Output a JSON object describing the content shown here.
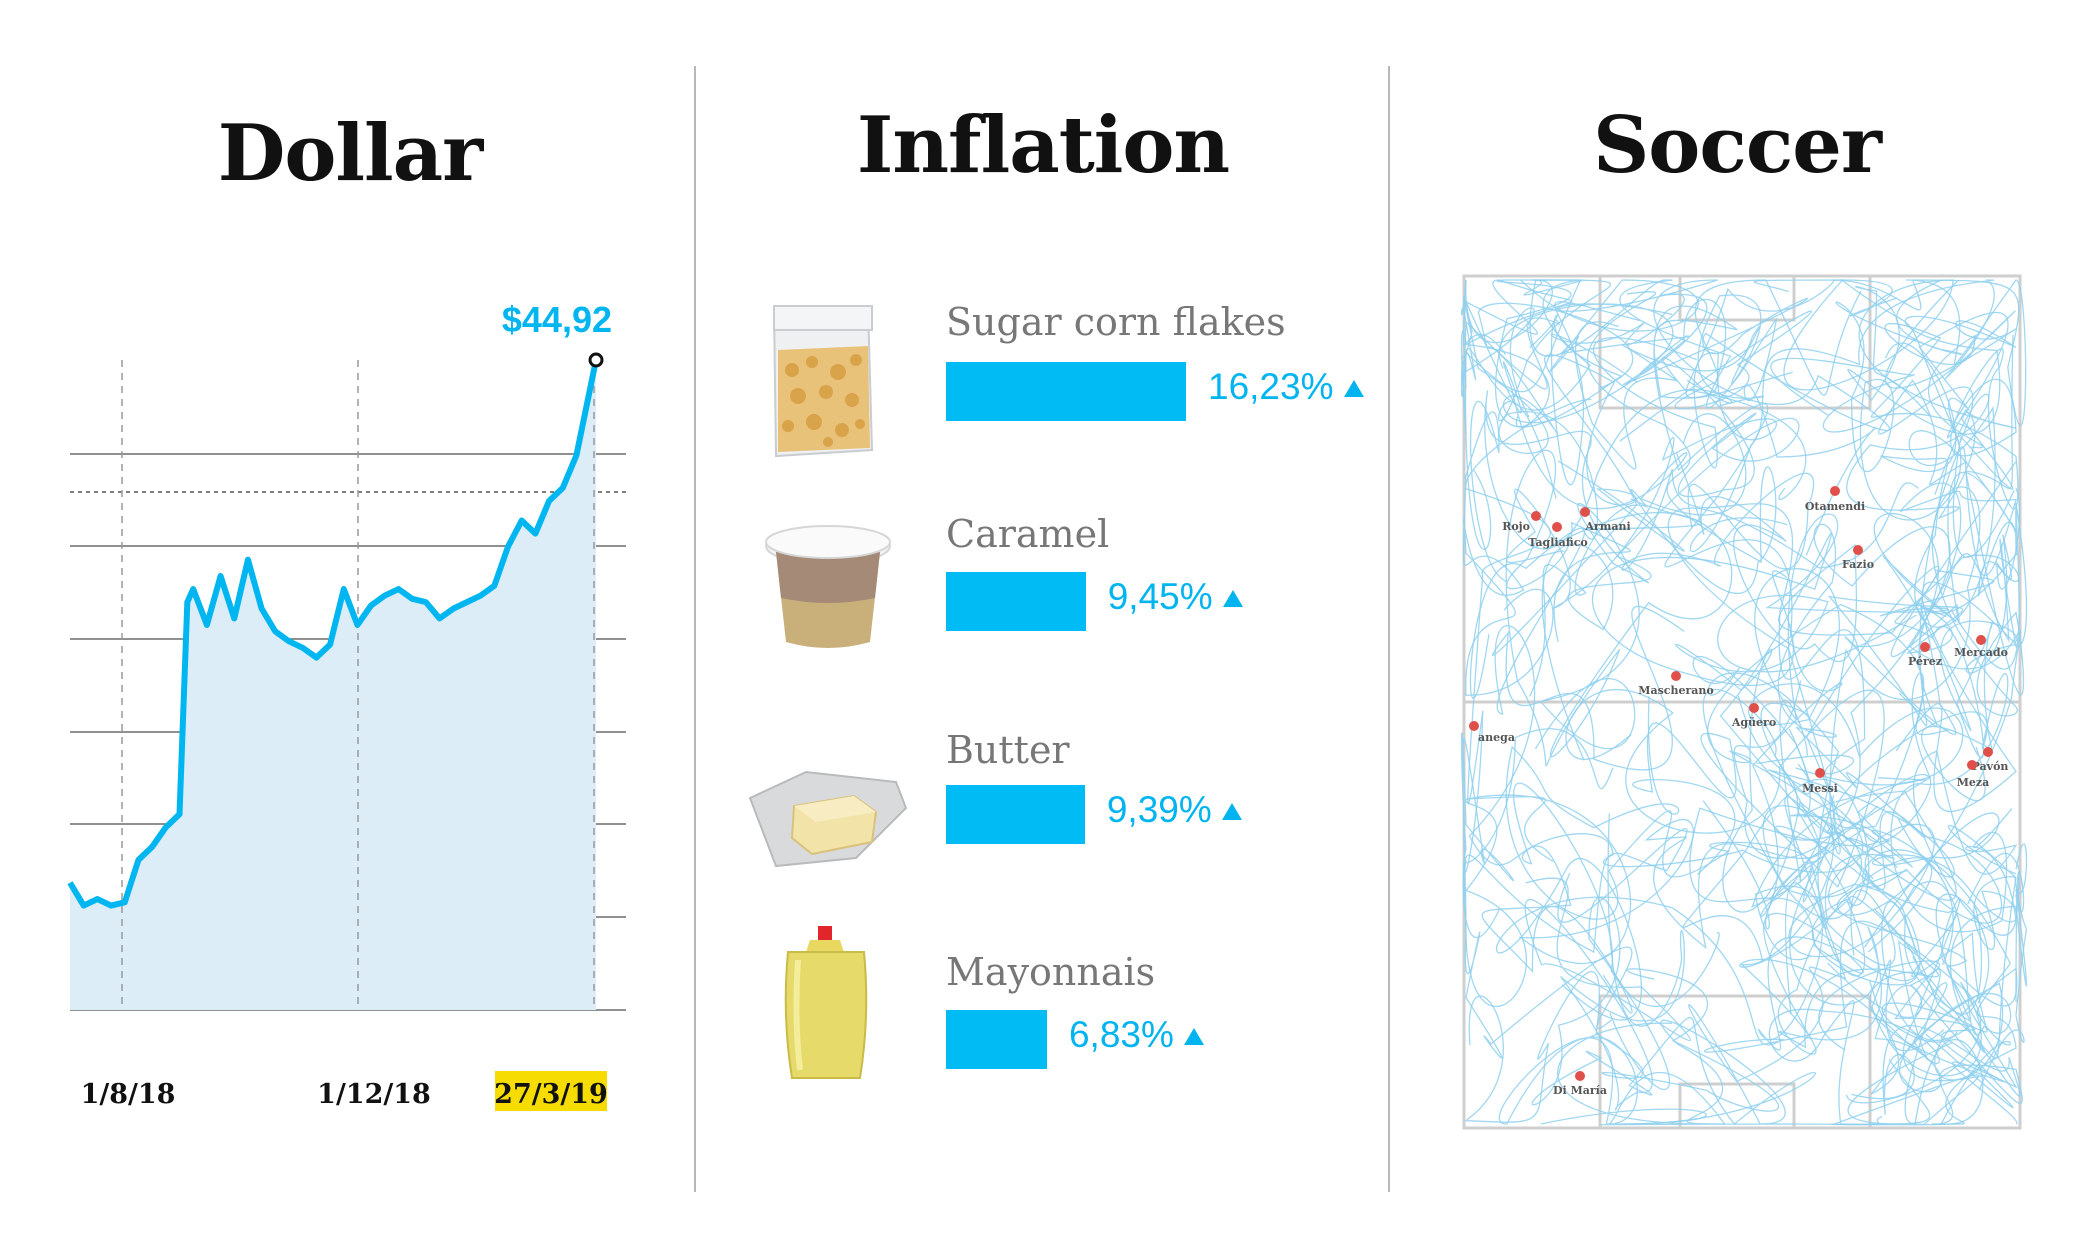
{
  "panels": {
    "dollar": {
      "title": "Dollar"
    },
    "inflation": {
      "title": "Inflation"
    },
    "soccer": {
      "title": "Soccer"
    }
  },
  "chart_data": [
    {
      "type": "area",
      "title": "Dollar",
      "x_tick_labels": [
        "1/8/18",
        "1/12/18",
        "27/3/19"
      ],
      "highlighted_tick": "27/3/19",
      "end_label": "$44,92",
      "x": [
        "2018-07-01",
        "2018-07-08",
        "2018-07-15",
        "2018-07-22",
        "2018-07-29",
        "2018-08-05",
        "2018-08-12",
        "2018-08-19",
        "2018-08-26",
        "2018-08-30",
        "2018-09-02",
        "2018-09-09",
        "2018-09-16",
        "2018-09-23",
        "2018-09-30",
        "2018-10-07",
        "2018-10-14",
        "2018-10-21",
        "2018-10-28",
        "2018-11-04",
        "2018-11-11",
        "2018-11-18",
        "2018-11-25",
        "2018-12-02",
        "2018-12-09",
        "2018-12-16",
        "2018-12-23",
        "2018-12-30",
        "2019-01-06",
        "2019-01-13",
        "2019-01-20",
        "2019-01-27",
        "2019-02-03",
        "2019-02-10",
        "2019-02-17",
        "2019-02-24",
        "2019-03-03",
        "2019-03-10",
        "2019-03-17",
        "2019-03-27"
      ],
      "values": [
        28.9,
        28.2,
        28.4,
        28.2,
        28.3,
        29.6,
        30.0,
        30.6,
        31.0,
        37.5,
        37.9,
        36.8,
        38.3,
        37.0,
        38.8,
        37.3,
        36.6,
        36.3,
        36.1,
        35.8,
        36.2,
        37.9,
        36.8,
        37.4,
        37.7,
        37.9,
        37.6,
        37.5,
        37.0,
        37.3,
        37.5,
        37.7,
        38.0,
        39.2,
        40.0,
        39.6,
        40.6,
        41.0,
        42.0,
        44.92
      ],
      "ylim": [
        25,
        44.92
      ],
      "colors": {
        "line": "#00b6f1",
        "fill": "#dcedf8",
        "highlight": "#f6dc00"
      }
    },
    {
      "type": "bar",
      "title": "Inflation",
      "categories": [
        "Sugar corn flakes",
        "Caramel",
        "Butter",
        "Mayonnais"
      ],
      "values": [
        16.23,
        9.45,
        9.39,
        6.83
      ],
      "value_labels": [
        "16,23%",
        "9,45%",
        "9,39%",
        "6,83%"
      ],
      "direction": "up",
      "icons": [
        "corn-flakes-bag-icon",
        "caramel-cup-icon",
        "butter-icon",
        "mayonnaise-pouch-icon"
      ],
      "colors": {
        "bar": "#00bbf4"
      }
    },
    {
      "type": "scatter",
      "title": "Soccer",
      "players": [
        "Rojo",
        "Armani",
        "Tagliafico",
        "Otamendi",
        "Fazio",
        "Pérez",
        "Mercado",
        "Mascherano",
        "Agüero",
        "Banega",
        "Messi",
        "Pavón",
        "Meza",
        "Di María"
      ],
      "labels": [
        "Rojo",
        "Armani",
        "Tagliafico",
        "Otamendi",
        "Fazio",
        "Pérez",
        "Mercado",
        "Mascherano",
        "Agüero",
        "anega",
        "Messi",
        "Pavón",
        "Meza",
        "Di María"
      ],
      "colors": {
        "trails": "#8fd0ee",
        "dots": "#e0504a"
      }
    }
  ]
}
